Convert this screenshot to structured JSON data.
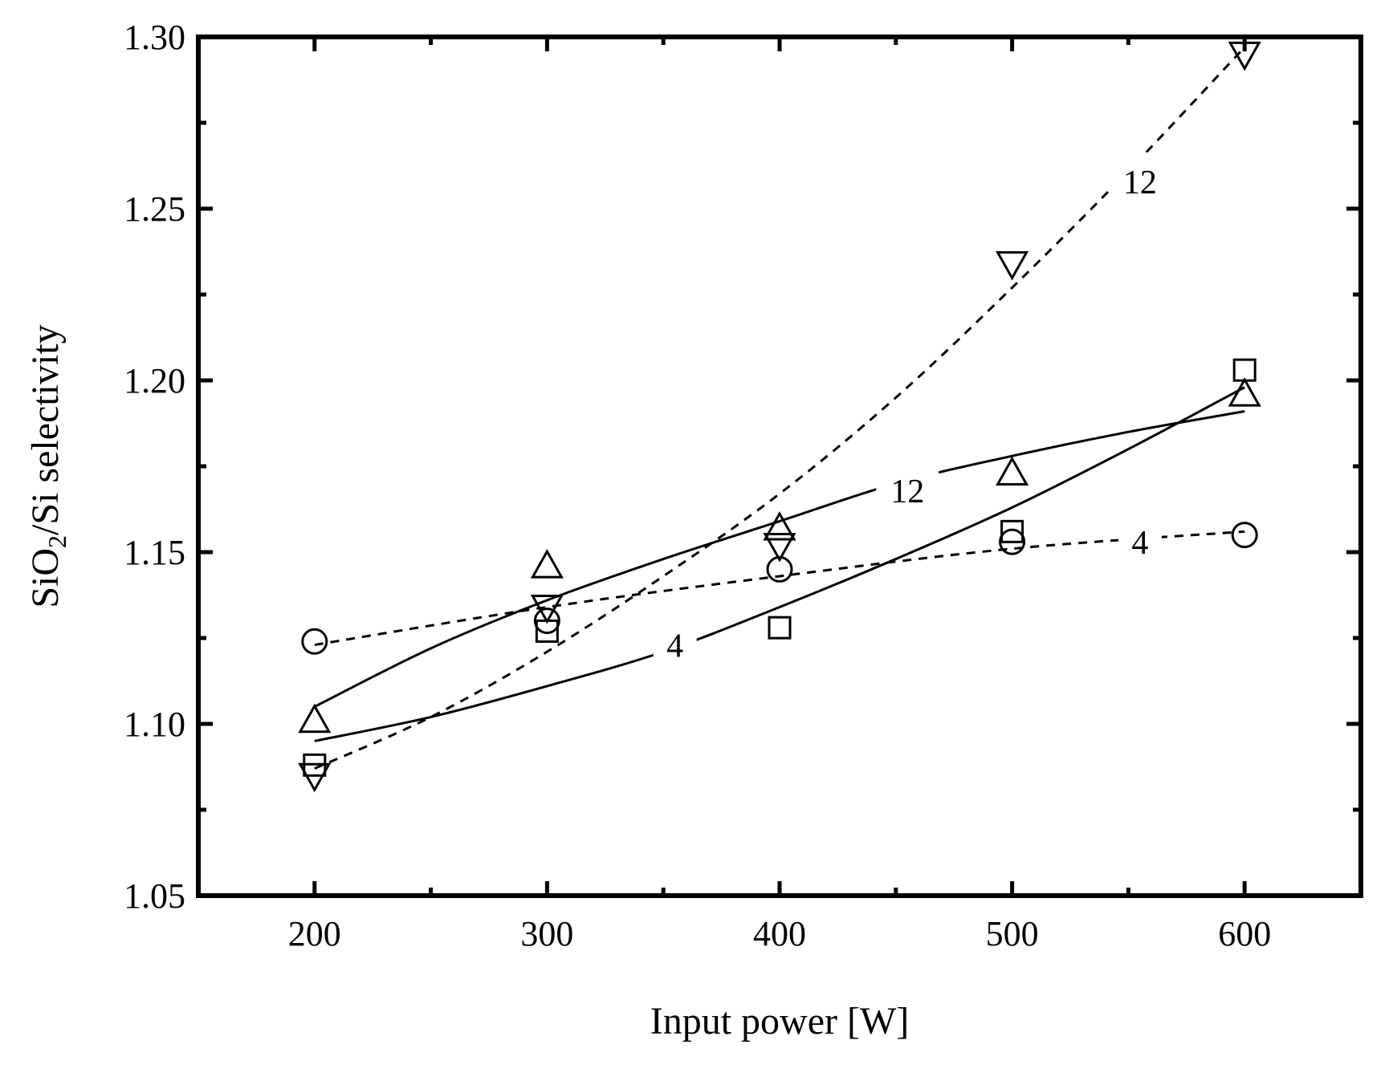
{
  "chart_data": {
    "type": "scatter",
    "title": "",
    "xlabel": "Input power [W]",
    "ylabel_parts": {
      "pre": "SiO",
      "sub": "2",
      "post": "/Si selectivity"
    },
    "xlim": [
      150,
      650
    ],
    "ylim": [
      1.05,
      1.3
    ],
    "xticks": [
      200,
      300,
      400,
      500,
      600
    ],
    "xtick_labels": [
      "200",
      "300",
      "400",
      "500",
      "600"
    ],
    "yticks": [
      1.05,
      1.1,
      1.15,
      1.2,
      1.25,
      1.3
    ],
    "ytick_labels": [
      "1.05",
      "1.10",
      "1.15",
      "1.20",
      "1.25",
      "1.30"
    ],
    "x_minor_step": 50,
    "y_minor_step": 0.025,
    "grid": false,
    "series": [
      {
        "name": "square",
        "marker": "square",
        "x": [
          200,
          300,
          400,
          500,
          600
        ],
        "y": [
          1.088,
          1.127,
          1.128,
          1.156,
          1.203
        ]
      },
      {
        "name": "circle",
        "marker": "circle",
        "x": [
          200,
          300,
          400,
          500,
          600
        ],
        "y": [
          1.124,
          1.13,
          1.145,
          1.153,
          1.155
        ]
      },
      {
        "name": "triangle-up",
        "marker": "triangle-up",
        "x": [
          200,
          300,
          400,
          500,
          600
        ],
        "y": [
          1.101,
          1.146,
          1.157,
          1.173,
          1.196
        ]
      },
      {
        "name": "triangle-down",
        "marker": "triangle-down",
        "x": [
          200,
          300,
          400,
          500,
          600
        ],
        "y": [
          1.085,
          1.134,
          1.152,
          1.234,
          1.295
        ]
      }
    ],
    "fits": [
      {
        "name": "fit-4-solid",
        "style": "solid",
        "label": "4",
        "label_at": [
          355,
          1.123
        ],
        "x": [
          200,
          250,
          300,
          350,
          400,
          450,
          500,
          550,
          600
        ],
        "y": [
          1.095,
          1.102,
          1.111,
          1.121,
          1.134,
          1.148,
          1.163,
          1.18,
          1.198
        ]
      },
      {
        "name": "fit-12-solid",
        "style": "solid",
        "label": "12",
        "label_at": [
          455,
          1.168
        ],
        "x": [
          200,
          250,
          300,
          350,
          400,
          450,
          500,
          550,
          600
        ],
        "y": [
          1.105,
          1.122,
          1.136,
          1.148,
          1.159,
          1.17,
          1.178,
          1.185,
          1.191
        ]
      },
      {
        "name": "fit-4-dashed",
        "style": "dashed",
        "label": "4",
        "label_at": [
          555,
          1.153
        ],
        "x": [
          200,
          300,
          400,
          500,
          600
        ],
        "y": [
          1.123,
          1.134,
          1.143,
          1.151,
          1.156
        ]
      },
      {
        "name": "fit-12-dashed",
        "style": "dashed",
        "label": "12",
        "label_at": [
          555,
          1.258
        ],
        "x": [
          200,
          250,
          300,
          350,
          400,
          450,
          500,
          550,
          600
        ],
        "y": [
          1.087,
          1.102,
          1.121,
          1.143,
          1.167,
          1.195,
          1.227,
          1.261,
          1.297
        ]
      }
    ]
  }
}
